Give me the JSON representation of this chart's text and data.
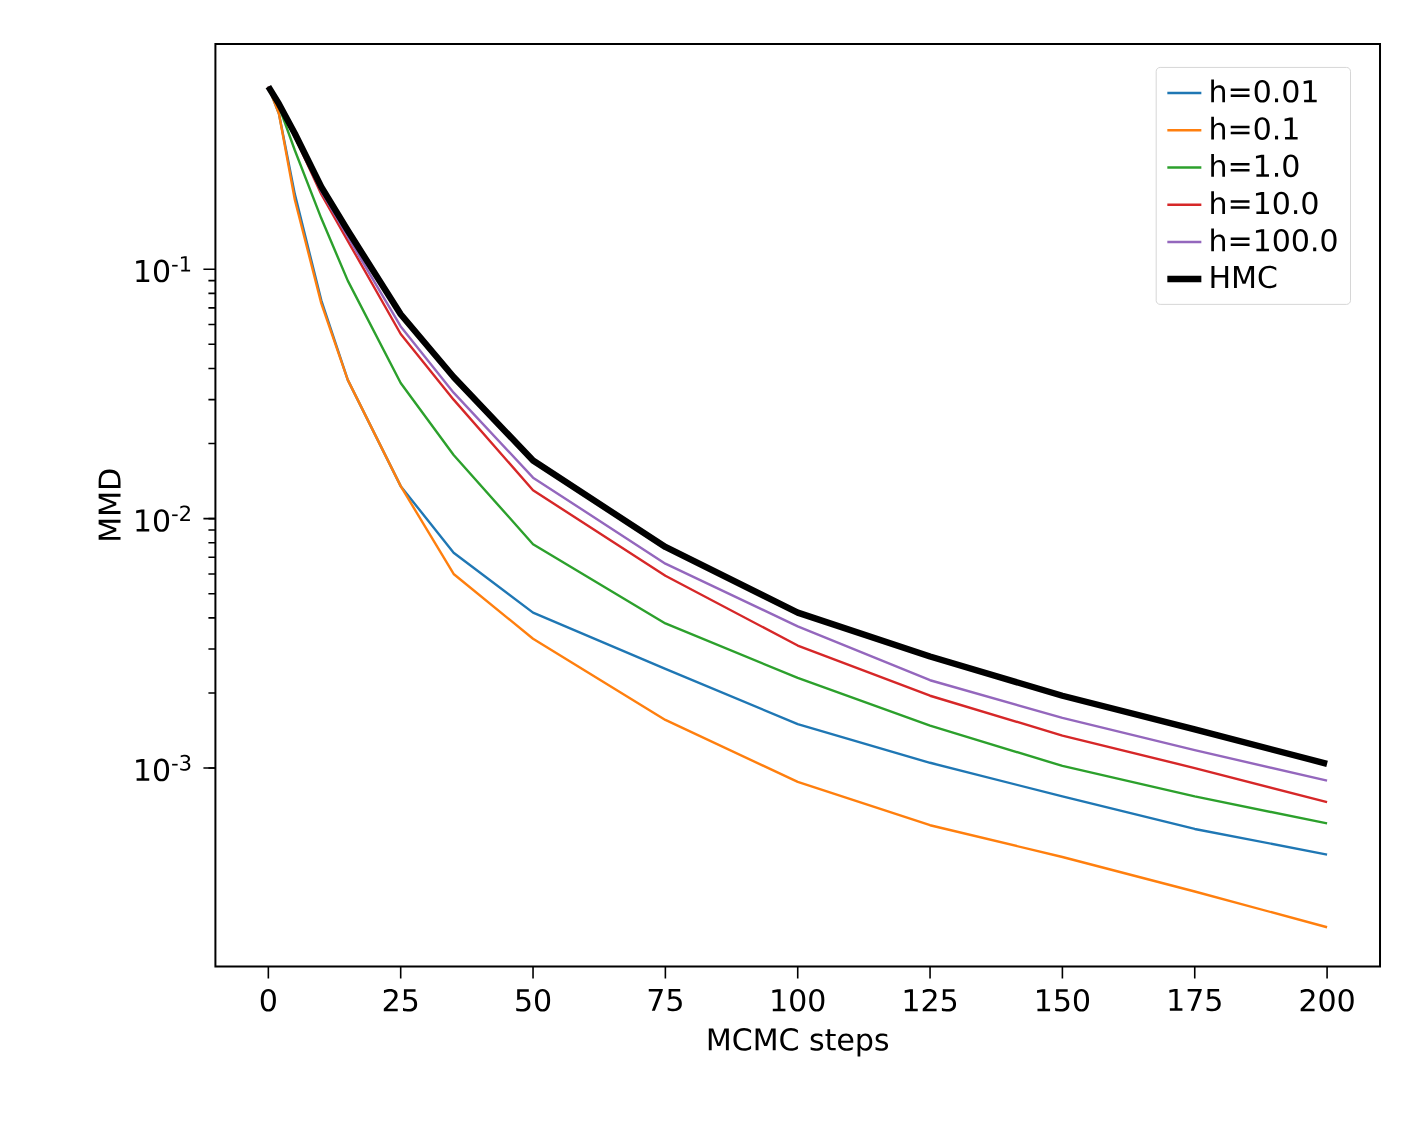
{
  "chart_data": {
    "type": "line",
    "xlabel": "MCMC steps",
    "ylabel": "MMD",
    "log": "y",
    "legend": "top right",
    "xlim": [
      -10,
      210
    ],
    "ylim": [
      0.00016,
      0.8
    ],
    "xticks": [
      0,
      25,
      50,
      75,
      100,
      125,
      150,
      175,
      200
    ],
    "yticks": [
      {
        "value": 0.001,
        "label": "10$^{-3}$"
      },
      {
        "value": 0.01,
        "label": "10$^{-2}$"
      },
      {
        "value": 0.1,
        "label": "10$^{-1}$"
      }
    ],
    "x": [
      0,
      2,
      5,
      10,
      15,
      25,
      35,
      50,
      75,
      100,
      125,
      150,
      175,
      200
    ],
    "series": [
      {
        "name": "h=0.01",
        "color": "#1f77b4",
        "values": [
          0.54,
          0.42,
          0.2,
          0.075,
          0.036,
          0.0135,
          0.0073,
          0.0042,
          0.0025,
          0.0015,
          0.00105,
          0.00077,
          0.00057,
          0.00045
        ]
      },
      {
        "name": "h=0.1",
        "color": "#ff7f0e",
        "values": [
          0.54,
          0.42,
          0.19,
          0.073,
          0.036,
          0.0135,
          0.006,
          0.0033,
          0.00156,
          0.00088,
          0.00059,
          0.00044,
          0.00032,
          0.00023
        ]
      },
      {
        "name": "h=1.0",
        "color": "#2ca02c",
        "values": [
          0.54,
          0.45,
          0.3,
          0.16,
          0.09,
          0.035,
          0.018,
          0.0079,
          0.0038,
          0.0023,
          0.00148,
          0.00102,
          0.00077,
          0.0006
        ]
      },
      {
        "name": "h=10.0",
        "color": "#d62728",
        "values": [
          0.54,
          0.45,
          0.34,
          0.2,
          0.13,
          0.055,
          0.03,
          0.013,
          0.0059,
          0.0031,
          0.00195,
          0.00135,
          0.001,
          0.00073
        ]
      },
      {
        "name": "h=100.0",
        "color": "#9467bd",
        "values": [
          0.54,
          0.45,
          0.34,
          0.205,
          0.135,
          0.059,
          0.032,
          0.0146,
          0.0066,
          0.0037,
          0.00225,
          0.00159,
          0.00118,
          0.00089
        ]
      },
      {
        "name": "HMC",
        "color": "#000000",
        "values": [
          0.54,
          0.46,
          0.35,
          0.214,
          0.143,
          0.066,
          0.037,
          0.0171,
          0.0077,
          0.0042,
          0.0028,
          0.00195,
          0.00143,
          0.00104
        ]
      }
    ]
  }
}
